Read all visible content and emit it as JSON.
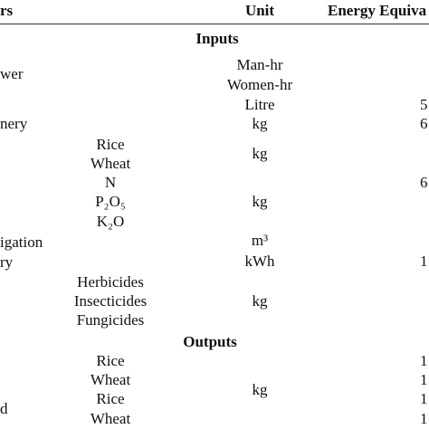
{
  "header": {
    "parameters": "rs",
    "unit": "Unit",
    "energy": "Energy Equiva"
  },
  "sections": [
    {
      "title": "Inputs",
      "rows": [
        {
          "param": "wer",
          "units": [
            "Man-hr",
            "Women-hr"
          ]
        },
        {
          "unit": "Litre",
          "energy": "5"
        },
        {
          "param": "nery",
          "unit": "kg",
          "energy": "6"
        },
        {
          "items": [
            "Rice",
            "Wheat"
          ],
          "unit": "kg"
        },
        {
          "items": [
            "N",
            "P₂O₅",
            "K₂O"
          ],
          "unit": "kg",
          "energy": "6"
        },
        {
          "param": "igation",
          "unit": "m³"
        },
        {
          "param": "ry",
          "unit": "kWh",
          "energy": "1"
        },
        {
          "items": [
            "Herbicides",
            "Insecticides",
            "Fungicides"
          ],
          "unit": "kg"
        }
      ]
    },
    {
      "title": "Outputs",
      "rows": [
        {
          "items": [
            "Rice",
            "Wheat",
            "Rice",
            "Wheat"
          ],
          "param": "d",
          "unit": "kg",
          "energies": [
            "1",
            "1",
            "1",
            "1"
          ]
        }
      ]
    }
  ]
}
